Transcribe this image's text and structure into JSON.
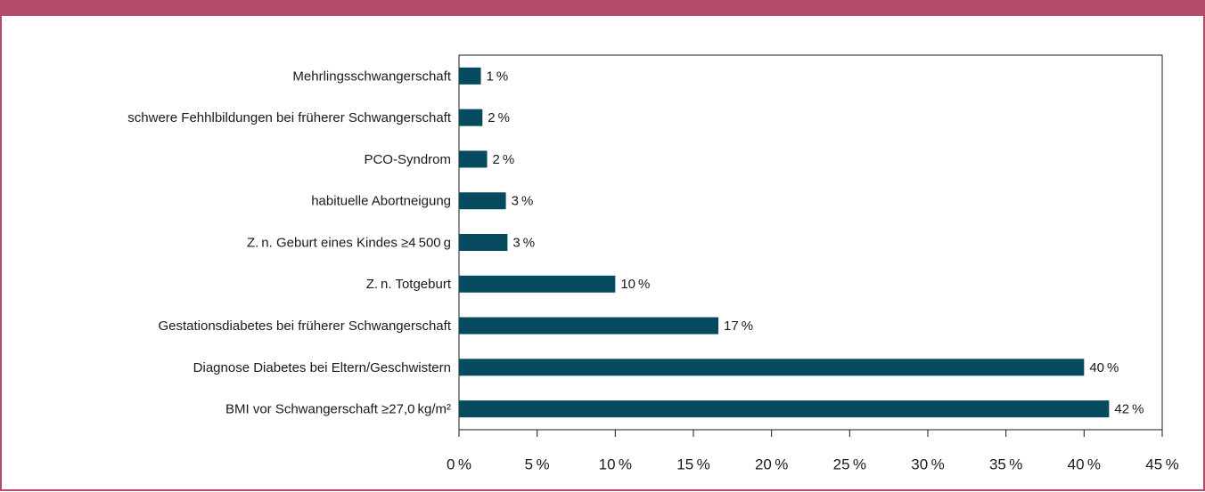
{
  "chart_data": {
    "type": "barh",
    "categories": [
      "Mehrlingsschwangerschaft",
      "schwere Fehhlbildungen bei früherer Schwangerschaft",
      "PCO-Syndrom",
      "habituelle Abortneigung",
      "Z. n. Geburt eines Kindes ≥4 500 g",
      "Z. n. Totgeburt",
      "Gestationsdiabetes bei früherer Schwangerschaft",
      "Diagnose Diabetes bei Eltern/Geschwistern",
      "BMI vor Schwangerschaft ≥27,0 kg/m²"
    ],
    "values": [
      1.4,
      1.5,
      1.8,
      3.0,
      3.1,
      10,
      16.6,
      40,
      41.6
    ],
    "value_labels": [
      "1 %",
      "2 %",
      "2 %",
      "3 %",
      "3 %",
      "10 %",
      "17 %",
      "40 %",
      "42 %"
    ],
    "color": "#054a5e",
    "xlim": [
      0,
      45
    ],
    "xticks": [
      {
        "value": 0,
        "label": "0 %"
      },
      {
        "value": 5,
        "label": "5 %"
      },
      {
        "value": 10,
        "label": "10 %"
      },
      {
        "value": 15,
        "label": "15 %"
      },
      {
        "value": 20,
        "label": "20 %"
      },
      {
        "value": 25,
        "label": "25 %"
      },
      {
        "value": 30,
        "label": "30 %"
      },
      {
        "value": 35,
        "label": "35 %"
      },
      {
        "value": 40,
        "label": "40 %"
      },
      {
        "value": 45,
        "label": "45 %"
      }
    ]
  }
}
